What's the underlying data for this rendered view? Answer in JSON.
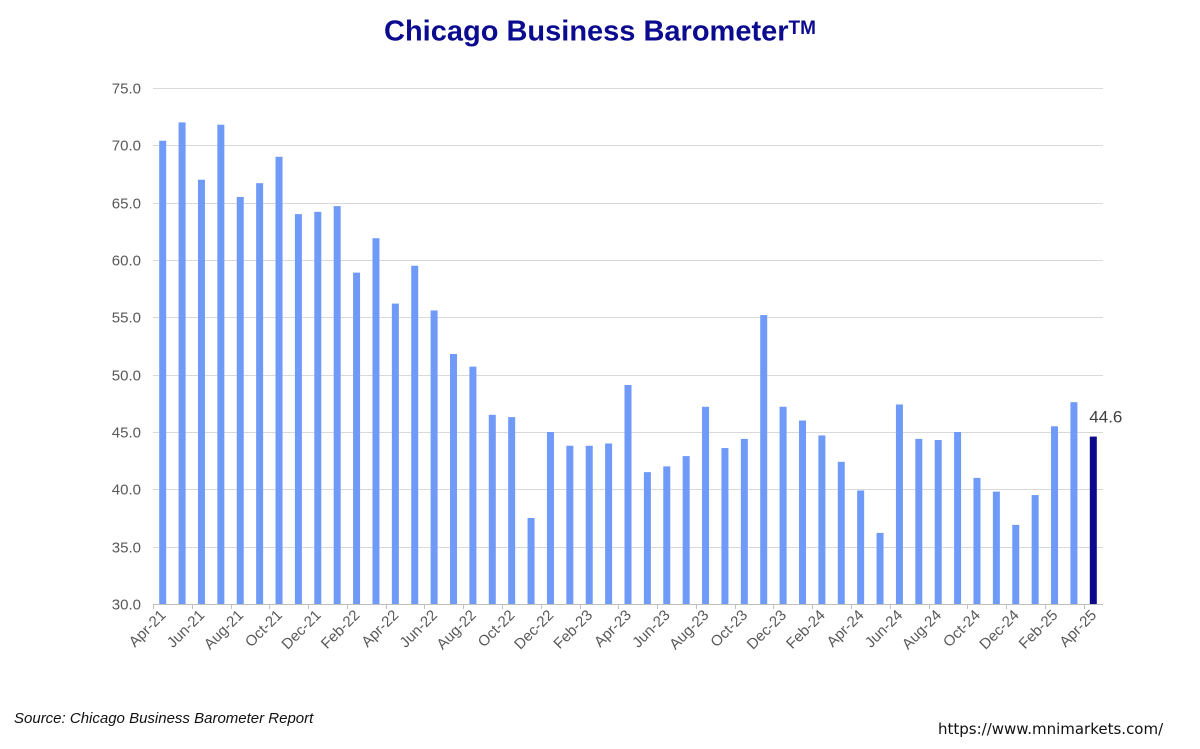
{
  "title": "Chicago Business Barometer",
  "title_mark": "TM",
  "source": "Source: Chicago Business Barometer Report",
  "url": "https://www.mnimarkets.com/",
  "colors": {
    "bar": "#6f9af8",
    "highlight": "#0a0a8a",
    "title": "#0b0b8f",
    "grid": "#d9d9d9",
    "axis_text": "#595959"
  },
  "chart_data": {
    "type": "bar",
    "title": "Chicago Business Barometer",
    "xlabel": "",
    "ylabel": "",
    "ylim": [
      30,
      75
    ],
    "yticks": [
      "30.0",
      "35.0",
      "40.0",
      "45.0",
      "50.0",
      "55.0",
      "60.0",
      "65.0",
      "70.0",
      "75.0"
    ],
    "grid": true,
    "categories": [
      "Apr-21",
      "May-21",
      "Jun-21",
      "Jul-21",
      "Aug-21",
      "Sep-21",
      "Oct-21",
      "Nov-21",
      "Dec-21",
      "Jan-22",
      "Feb-22",
      "Mar-22",
      "Apr-22",
      "May-22",
      "Jun-22",
      "Jul-22",
      "Aug-22",
      "Sep-22",
      "Oct-22",
      "Nov-22",
      "Dec-22",
      "Jan-23",
      "Feb-23",
      "Mar-23",
      "Apr-23",
      "May-23",
      "Jun-23",
      "Jul-23",
      "Aug-23",
      "Sep-23",
      "Oct-23",
      "Nov-23",
      "Dec-23",
      "Jan-24",
      "Feb-24",
      "Mar-24",
      "Apr-24",
      "May-24",
      "Jun-24",
      "Jul-24",
      "Aug-24",
      "Sep-24",
      "Oct-24",
      "Nov-24",
      "Dec-24",
      "Jan-25",
      "Feb-25",
      "Mar-25",
      "Apr-25"
    ],
    "tick_labels": [
      "Apr-21",
      "Jun-21",
      "Aug-21",
      "Oct-21",
      "Dec-21",
      "Feb-22",
      "Apr-22",
      "Jun-22",
      "Aug-22",
      "Oct-22",
      "Dec-22",
      "Feb-23",
      "Apr-23",
      "Jun-23",
      "Aug-23",
      "Oct-23",
      "Dec-23",
      "Feb-24",
      "Apr-24",
      "Jun-24",
      "Aug-24",
      "Oct-24",
      "Dec-24",
      "Feb-25",
      "Apr-25"
    ],
    "values": [
      70.4,
      72.0,
      67.0,
      71.8,
      65.5,
      66.7,
      69.0,
      64.0,
      64.2,
      64.7,
      58.9,
      61.9,
      56.2,
      59.5,
      55.6,
      51.8,
      50.7,
      46.5,
      46.3,
      37.5,
      45.0,
      43.8,
      43.8,
      44.0,
      49.1,
      41.5,
      42.0,
      42.9,
      47.2,
      43.6,
      44.4,
      55.2,
      47.2,
      46.0,
      44.7,
      42.4,
      39.9,
      36.2,
      47.4,
      44.4,
      44.3,
      45.0,
      41.0,
      39.8,
      36.9,
      39.5,
      45.5,
      47.6,
      44.6
    ],
    "highlight_index": 48,
    "annotations": [
      {
        "category": "Apr-25",
        "text": "44.6"
      }
    ]
  }
}
